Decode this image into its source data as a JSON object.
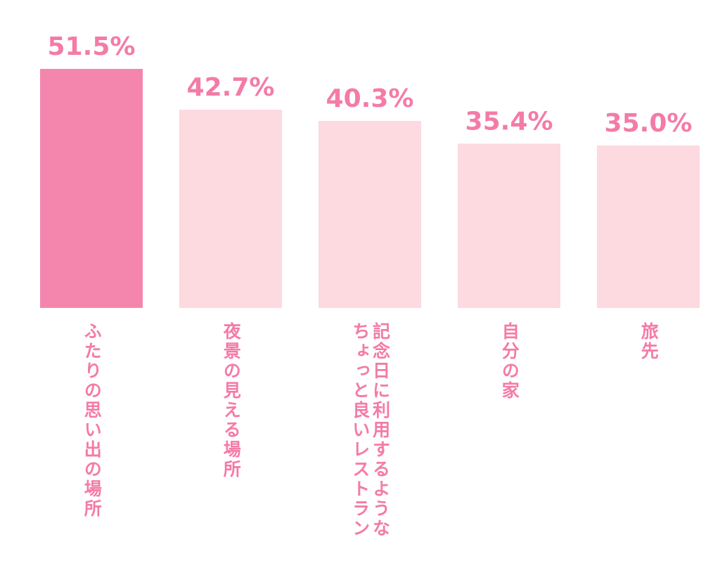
{
  "chart_data": {
    "type": "bar",
    "categories": [
      "ふたりの思い出の場所",
      "夜景の見える場所",
      "記念日に利用するようなちょっと良いレストラン",
      "自分の家",
      "旅先"
    ],
    "values": [
      51.5,
      42.7,
      40.3,
      35.4,
      35.0
    ],
    "value_labels": [
      "51.5%",
      "42.7%",
      "40.3%",
      "35.4%",
      "35.0%"
    ],
    "colors": [
      "#f486ae",
      "#fdd9e0",
      "#fdd9e0",
      "#fdd9e0",
      "#fdd9e0"
    ],
    "label_color": "#f47ba7"
  }
}
